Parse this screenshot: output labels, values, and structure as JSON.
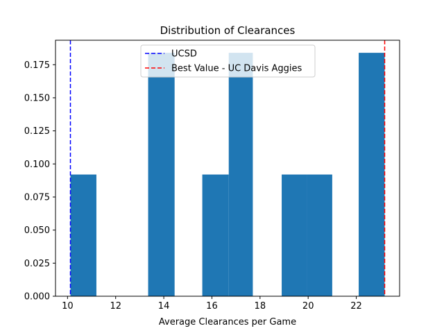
{
  "chart_data": {
    "type": "bar",
    "title": "Distribution of Clearances",
    "xlabel": "Average Clearances per Game",
    "ylabel": "",
    "xlim": [
      9.5,
      23.8
    ],
    "ylim": [
      0,
      0.1935
    ],
    "bins": [
      {
        "x0": 10.12,
        "x1": 11.2,
        "value": 0.092
      },
      {
        "x0": 13.35,
        "x1": 14.45,
        "value": 0.184
      },
      {
        "x0": 15.6,
        "x1": 16.7,
        "value": 0.092
      },
      {
        "x0": 16.7,
        "x1": 17.7,
        "value": 0.184
      },
      {
        "x0": 18.9,
        "x1": 19.95,
        "value": 0.092
      },
      {
        "x0": 19.95,
        "x1": 21.0,
        "value": 0.092
      },
      {
        "x0": 22.1,
        "x1": 23.18,
        "value": 0.184
      }
    ],
    "bar_color": "#1f77b4",
    "x_ticks": [
      10,
      12,
      14,
      16,
      18,
      20,
      22
    ],
    "x_tick_labels": [
      "10",
      "12",
      "14",
      "16",
      "18",
      "20",
      "22"
    ],
    "y_ticks": [
      0.0,
      0.025,
      0.05,
      0.075,
      0.1,
      0.125,
      0.15,
      0.175
    ],
    "y_tick_labels": [
      "0.000",
      "0.025",
      "0.050",
      "0.075",
      "0.100",
      "0.125",
      "0.150",
      "0.175"
    ],
    "reference_lines": [
      {
        "name": "UCSD",
        "x": 10.12,
        "color": "#0000ff",
        "style": "dashed"
      },
      {
        "name": "Best Value - UC Davis Aggies",
        "x": 23.18,
        "color": "#ff0000",
        "style": "dashed"
      }
    ],
    "legend_placement": "top-center",
    "grid": false
  }
}
